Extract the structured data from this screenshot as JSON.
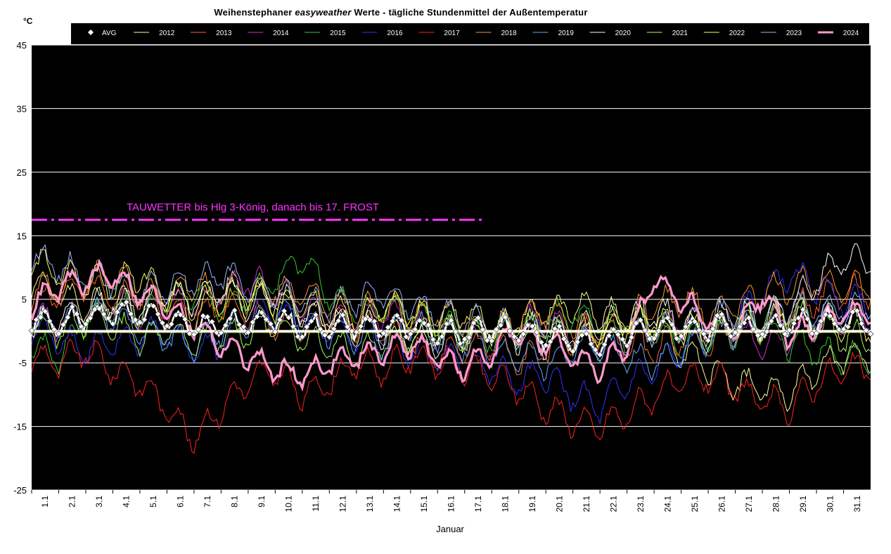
{
  "title": {
    "part1": "Weihenstephaner ",
    "part2": "easyweather",
    "part3": " Werte - tägliche Stundenmittel der Außentemperatur"
  },
  "chart_data": {
    "type": "line",
    "title": "Weihenstephaner easyweather Werte - tägliche Stundenmittel der Außentemperatur",
    "ylabel": "°C",
    "xlabel": "Januar",
    "ylim": [
      -25,
      45
    ],
    "yticks": [
      -25,
      -15,
      -5,
      5,
      15,
      25,
      35,
      45
    ],
    "xticks": [
      "1.1",
      "2.1",
      "3.1",
      "4.1",
      "5.1",
      "6.1",
      "7.1",
      "8.1",
      "9.1",
      "10.1",
      "11.1",
      "12.1",
      "13.1",
      "14.1",
      "15.1",
      "16.1",
      "17.1",
      "18.1",
      "19.1",
      "20.1",
      "21.1",
      "22.1",
      "23.1",
      "24.1",
      "25.1",
      "26.1",
      "27.1",
      "28.1",
      "29.1",
      "30.1",
      "31.1"
    ],
    "grid": true,
    "legend_position": "top",
    "background": "#000000",
    "reference_line": 0,
    "annotation": {
      "text": "TAUWETTER bis Hlg 3-König, danach bis 17. FROST",
      "level": 17.5,
      "x_end": 17.75
    },
    "series": [
      {
        "name": "AVG",
        "color": "#ffffff",
        "style": "diamond-line",
        "daily": [
          1.5,
          1.2,
          2.2,
          2.8,
          2.5,
          2.0,
          0.5,
          0.8,
          1.5,
          2.0,
          0.5,
          0.4,
          0.9,
          0.6,
          1.0,
          -0.2,
          -0.4,
          0.4,
          0.0,
          -1.0,
          -1.6,
          -2.0,
          -0.3,
          0.5,
          0.3,
          0.5,
          0.7,
          0.4,
          1.2,
          1.5,
          1.4
        ]
      },
      {
        "name": "2012",
        "color": "#ffff99",
        "style": "line",
        "daily": [
          8,
          6,
          4,
          5,
          3,
          6,
          2,
          7,
          6,
          5,
          3,
          2,
          0,
          4,
          3,
          1,
          -1,
          0,
          2,
          3,
          4,
          3,
          2,
          1,
          -3,
          -6,
          -8,
          -9,
          -10,
          -6,
          -4
        ]
      },
      {
        "name": "2013",
        "color": "#ff6633",
        "style": "line",
        "daily": [
          4,
          6,
          7,
          5,
          6,
          3,
          2,
          4,
          3,
          1,
          0,
          2,
          1,
          0,
          -2,
          -4,
          -3,
          -2,
          -5,
          -3,
          -1,
          0,
          -2,
          -3,
          -1,
          -2,
          0,
          1,
          3,
          5,
          6
        ]
      },
      {
        "name": "2014",
        "color": "#cc33cc",
        "style": "line",
        "daily": [
          3,
          1,
          2,
          4,
          3,
          5,
          4,
          6,
          8,
          6,
          4,
          3,
          2,
          3,
          1,
          0,
          -1,
          -2,
          1,
          2,
          0,
          -2,
          -1,
          0,
          2,
          1,
          0,
          -2,
          -1,
          1,
          2
        ]
      },
      {
        "name": "2015",
        "color": "#33cc33",
        "style": "line",
        "daily": [
          -2,
          -4,
          2,
          4,
          3,
          5,
          6,
          4,
          5,
          8,
          12,
          6,
          3,
          4,
          2,
          1,
          0,
          -1,
          0,
          2,
          3,
          1,
          -1,
          0,
          -2,
          -1,
          0,
          1,
          -2,
          -3,
          -4
        ]
      },
      {
        "name": "2016",
        "color": "#3333ff",
        "style": "line",
        "daily": [
          0,
          -1,
          -3,
          -2,
          -1,
          0,
          -3,
          -2,
          2,
          3,
          1,
          0,
          -1,
          -2,
          -3,
          -4,
          -5,
          -6,
          -8,
          -7,
          -10,
          -12,
          -8,
          -6,
          -3,
          -1,
          2,
          6,
          9,
          7,
          5
        ]
      },
      {
        "name": "2017",
        "color": "#ff2222",
        "style": "line",
        "daily": [
          -4,
          -5,
          -3,
          -6,
          -8,
          -12,
          -17,
          -12,
          -8,
          -6,
          -10,
          -8,
          -5,
          -6,
          -4,
          -5,
          -6,
          -7,
          -9,
          -12,
          -14,
          -15,
          -13,
          -10,
          -8,
          -7,
          -9,
          -11,
          -12,
          -8,
          -6
        ]
      },
      {
        "name": "2018",
        "color": "#ff9933",
        "style": "line",
        "daily": [
          6,
          7,
          8,
          9,
          6,
          5,
          8,
          4,
          5,
          7,
          6,
          5,
          3,
          4,
          2,
          3,
          1,
          0,
          2,
          3,
          1,
          0,
          2,
          4,
          5,
          3,
          4,
          6,
          7,
          8,
          7
        ]
      },
      {
        "name": "2019",
        "color": "#66aaff",
        "style": "line",
        "daily": [
          2,
          1,
          3,
          2,
          0,
          -1,
          -2,
          0,
          1,
          3,
          2,
          0,
          -1,
          0,
          1,
          -1,
          -2,
          -3,
          -4,
          -5,
          -3,
          -2,
          -4,
          -5,
          -3,
          -1,
          0,
          1,
          2,
          3,
          2
        ]
      },
      {
        "name": "2020",
        "color": "#ffffff",
        "style": "line",
        "daily": [
          1,
          2,
          3,
          5,
          4,
          6,
          5,
          7,
          4,
          6,
          3,
          2,
          1,
          0,
          -1,
          -2,
          0,
          1,
          -1,
          -2,
          0,
          1,
          2,
          3,
          2,
          1,
          3,
          2,
          4,
          8,
          11
        ]
      },
      {
        "name": "2021",
        "color": "#aaff66",
        "style": "line",
        "daily": [
          1,
          0,
          2,
          1,
          -1,
          0,
          -2,
          -1,
          0,
          1,
          -1,
          -2,
          -3,
          -2,
          -1,
          0,
          -1,
          0,
          1,
          0,
          -1,
          0,
          2,
          1,
          0,
          -1,
          1,
          2,
          3,
          1,
          -1
        ]
      },
      {
        "name": "2022",
        "color": "#ffff66",
        "style": "line",
        "daily": [
          11,
          9,
          8,
          7,
          9,
          6,
          4,
          5,
          6,
          4,
          5,
          3,
          2,
          4,
          3,
          2,
          3,
          1,
          0,
          1,
          -1,
          0,
          1,
          2,
          1,
          0,
          2,
          1,
          3,
          2,
          1
        ]
      },
      {
        "name": "2023",
        "color": "#99bbff",
        "style": "line",
        "daily": [
          12,
          10,
          9,
          8,
          6,
          7,
          8,
          9,
          7,
          6,
          5,
          4,
          5,
          6,
          4,
          3,
          2,
          1,
          0,
          1,
          -1,
          -2,
          -1,
          0,
          1,
          2,
          3,
          2,
          4,
          3,
          4
        ]
      },
      {
        "name": "2024",
        "color": "#ff99cc",
        "style": "thick-line",
        "daily": [
          4,
          7,
          8,
          9,
          6,
          4,
          1,
          -2,
          -4,
          -6,
          -7,
          -5,
          -4,
          -3,
          -2,
          -4,
          -6,
          -3,
          0,
          -2,
          -4,
          -6,
          -2,
          8,
          5,
          2,
          0,
          6,
          -1,
          1,
          3
        ]
      }
    ]
  }
}
